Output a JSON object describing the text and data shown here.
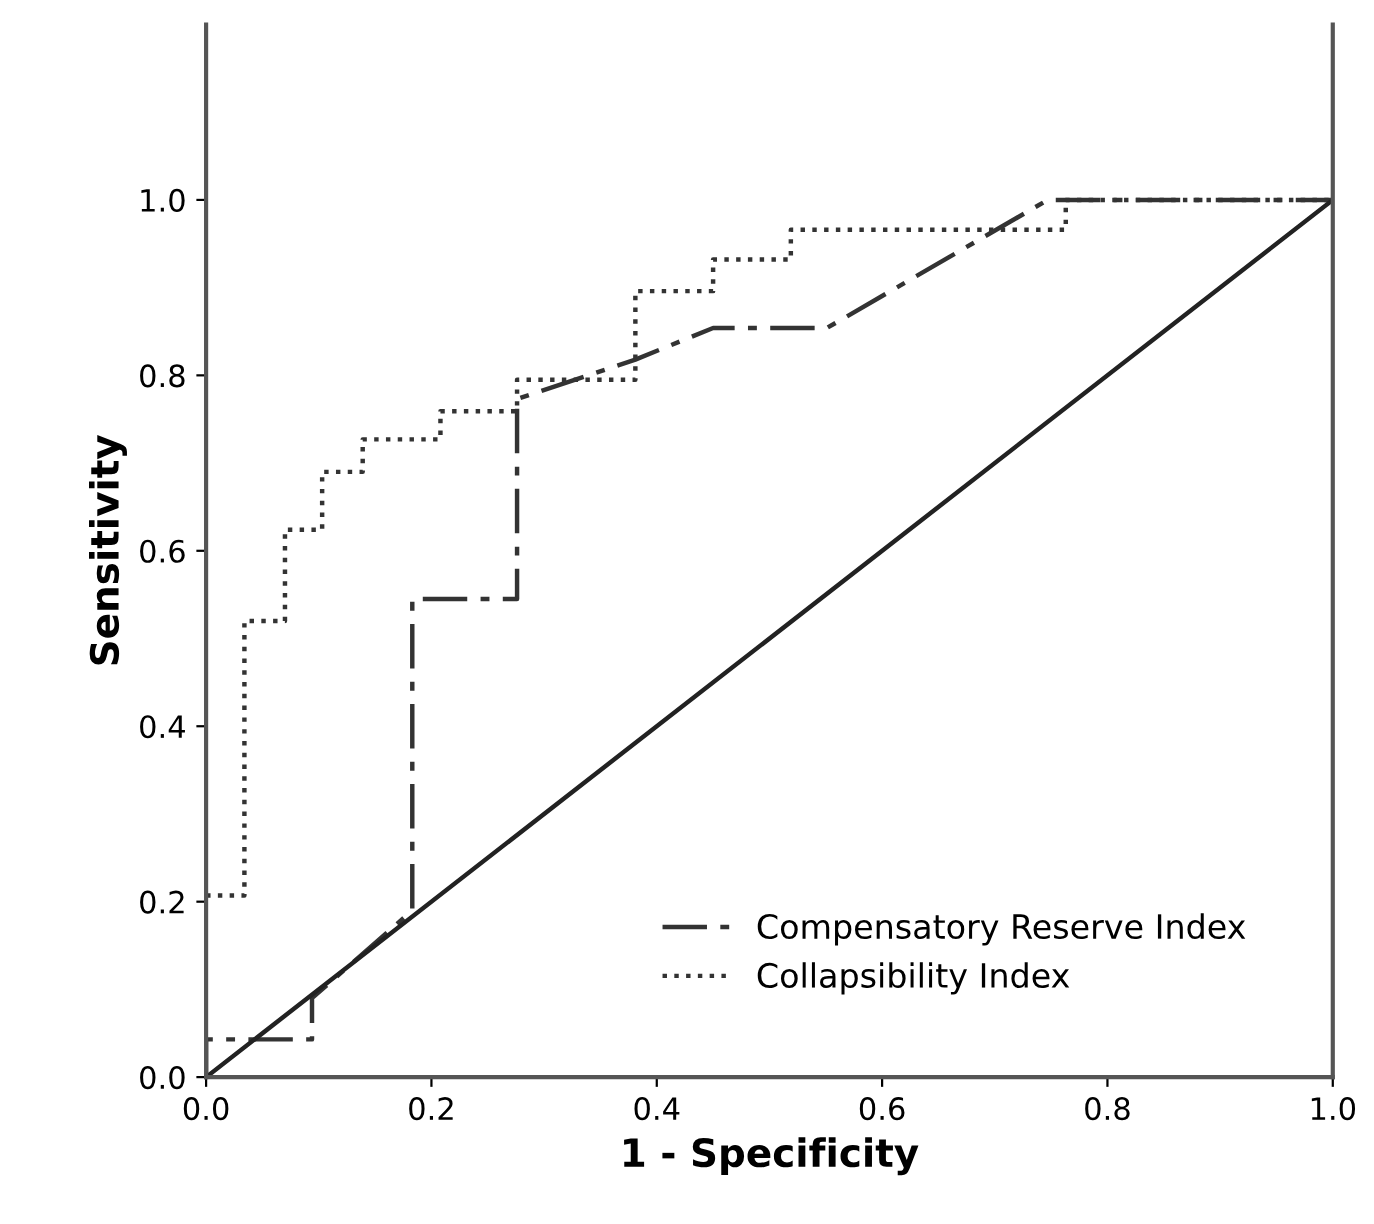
{
  "chart_data": {
    "type": "line",
    "xlabel": "1 - Specificity",
    "ylabel": "Sensitivity",
    "xlim": [
      0,
      1
    ],
    "ylim": [
      0,
      1.2
    ],
    "xticks": [
      {
        "value": 0,
        "label": "0.0"
      },
      {
        "value": 0.2,
        "label": "0.2"
      },
      {
        "value": 0.4,
        "label": "0.4"
      },
      {
        "value": 0.6,
        "label": "0.6"
      },
      {
        "value": 0.8,
        "label": "0.8"
      },
      {
        "value": 1,
        "label": "1.0"
      }
    ],
    "yticks": [
      {
        "value": 0,
        "label": "0.0"
      },
      {
        "value": 0.2,
        "label": "0.2"
      },
      {
        "value": 0.4,
        "label": "0.4"
      },
      {
        "value": 0.6,
        "label": "0.6"
      },
      {
        "value": 0.8,
        "label": "0.8"
      },
      {
        "value": 1,
        "label": "1.0"
      }
    ],
    "grid": false,
    "legend": "bottom right",
    "marker": "none",
    "series": [
      {
        "name": "Compensatory Reserve Index",
        "color": "#333333",
        "line_style": "dashdot",
        "x": [
          0,
          0,
          0.094,
          0.094,
          0.183,
          0.183,
          0.276,
          0.276,
          0.381,
          0.45,
          0.551,
          0.747,
          1.0
        ],
        "values": [
          0,
          0.043,
          0.043,
          0.09,
          0.19,
          0.545,
          0.545,
          0.773,
          0.818,
          0.854,
          0.854,
          1.0,
          1.0
        ]
      },
      {
        "name": "Collapsibility Index",
        "color": "#333333",
        "line_style": "dotted",
        "x": [
          0,
          0.034,
          0.034,
          0.07,
          0.07,
          0.103,
          0.103,
          0.139,
          0.139,
          0.208,
          0.208,
          0.276,
          0.276,
          0.381,
          0.381,
          0.45,
          0.45,
          0.519,
          0.519,
          0.763,
          0.763,
          1.0
        ],
        "values": [
          0.207,
          0.207,
          0.52,
          0.52,
          0.624,
          0.624,
          0.69,
          0.69,
          0.727,
          0.727,
          0.759,
          0.759,
          0.795,
          0.795,
          0.896,
          0.896,
          0.932,
          0.932,
          0.966,
          0.966,
          1.0,
          1.0
        ]
      },
      {
        "color": "#222222",
        "line_style": "solid",
        "x": [
          0,
          1
        ],
        "values": [
          0,
          1
        ]
      }
    ]
  }
}
